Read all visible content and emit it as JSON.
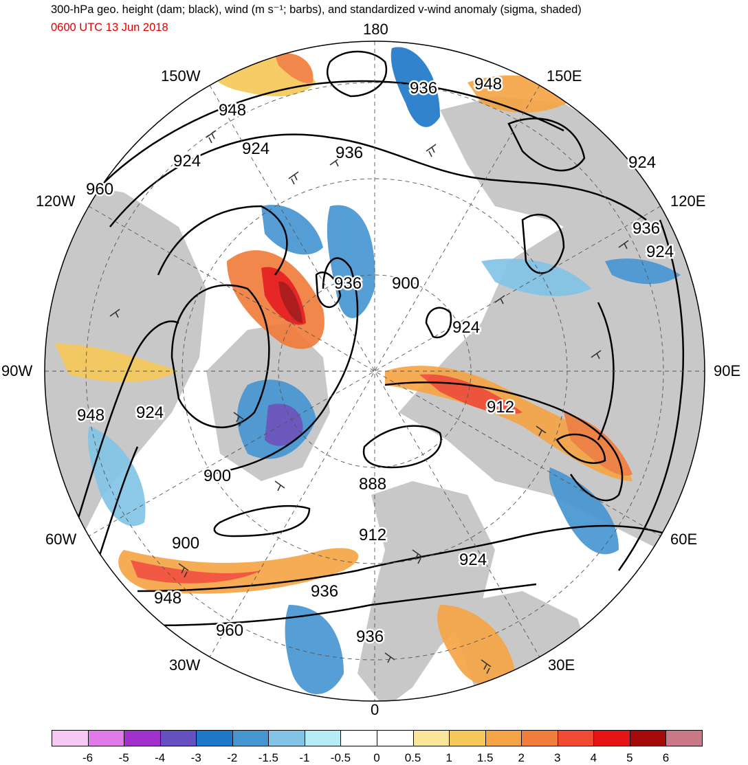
{
  "header": {
    "title": "300-hPa geo. height (dam; black), wind (m s⁻¹; barbs), and standardized v-wind anomaly (sigma, shaded)",
    "datetime": "0600 UTC 13 Jun 2018"
  },
  "map": {
    "projection": "north polar stereographic",
    "longitude_labels": {
      "top": "180",
      "top_left": "150W",
      "top_right": "150E",
      "upper_left": "120W",
      "upper_right": "120E",
      "left": "90W",
      "right": "90E",
      "lower_left": "60W",
      "lower_right": "60E",
      "bottom_left": "30W",
      "bottom_right": "30E",
      "bottom": "0"
    },
    "contour_labels": [
      "948",
      "936",
      "924",
      "924",
      "936",
      "960",
      "948",
      "924",
      "924",
      "936",
      "900",
      "924",
      "912",
      "900",
      "888",
      "948",
      "924",
      "936",
      "900",
      "912",
      "924",
      "948",
      "936",
      "960",
      "936"
    ],
    "colors": {
      "land": "#c8c8c8",
      "ocean": "#ffffff",
      "contour": "#000000",
      "barb": "#333333"
    }
  },
  "colorbar": {
    "colors": [
      "#f8c8f4",
      "#e07ae8",
      "#a232cc",
      "#6450be",
      "#1e78c8",
      "#4696d2",
      "#82c3e6",
      "#b4ebf5",
      "#ffffff",
      "#ffffff",
      "#fae69a",
      "#f5c85a",
      "#f5a546",
      "#f07d3c",
      "#f04b32",
      "#e61414",
      "#a50a0a",
      "#c87887"
    ],
    "tick_labels": [
      "-6",
      "-5",
      "-4",
      "-3",
      "-2",
      "-1.5",
      "-1",
      "-0.5",
      "0",
      "0.5",
      "1",
      "1.5",
      "2",
      "3",
      "4",
      "5",
      "6"
    ]
  }
}
